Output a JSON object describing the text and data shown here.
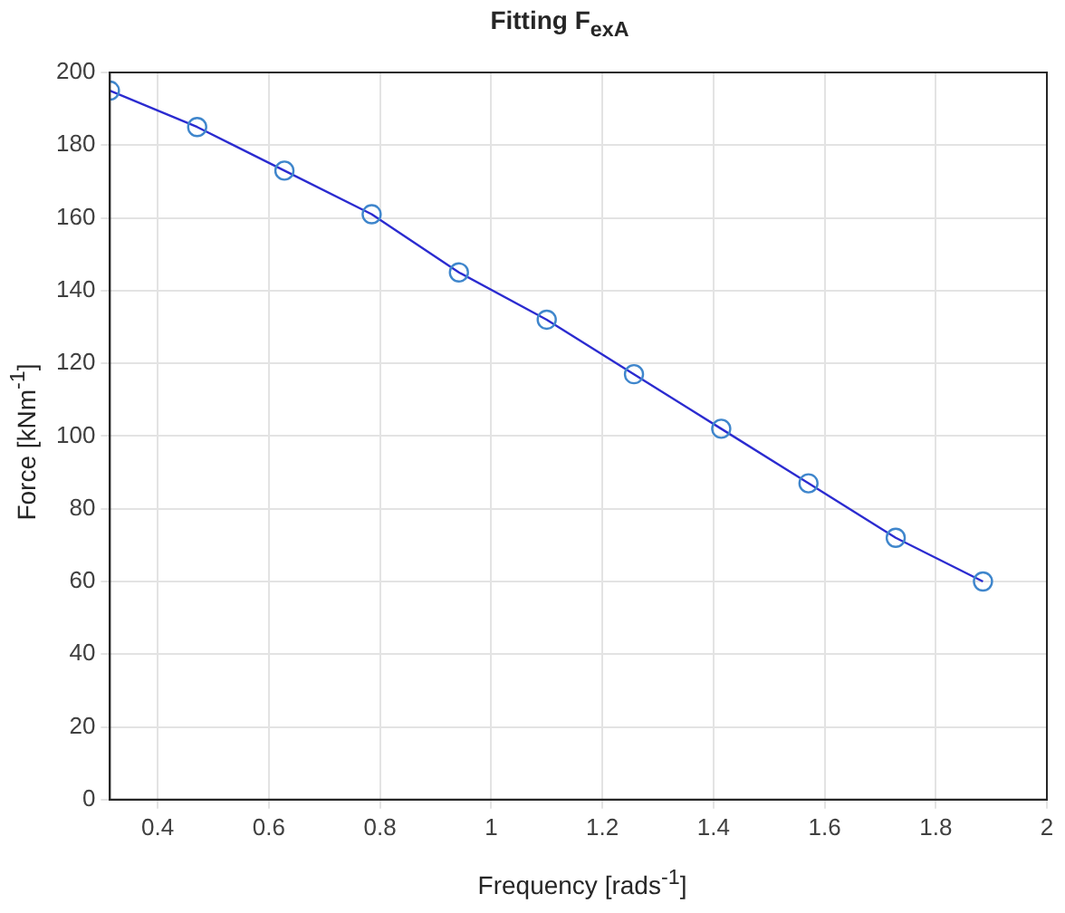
{
  "chart_data": {
    "type": "scatter",
    "title": "Fitting F$_{exA}$",
    "xlabel": "Frequency [rads$^{-1}$]",
    "ylabel": "Force [kNm$^{-1}$]",
    "x": [
      0.314,
      0.471,
      0.628,
      0.785,
      0.942,
      1.1,
      1.257,
      1.414,
      1.571,
      1.728,
      1.885
    ],
    "series": [
      {
        "marker": "circle",
        "color": "#3f86cc",
        "values": [
          195,
          185,
          173,
          161,
          145,
          132,
          117,
          102,
          87,
          72,
          60
        ]
      },
      {
        "type": "line",
        "marker": "none",
        "line_style": "solid",
        "color": "#2b2bd0",
        "values": [
          195,
          185,
          173,
          161,
          145,
          132,
          117,
          102,
          87,
          72,
          60
        ]
      }
    ],
    "xlim": [
      0.314,
      2
    ],
    "xticks": [
      {
        "value": 0.4,
        "label": "0.4"
      },
      {
        "value": 0.6,
        "label": "0.6"
      },
      {
        "value": 0.8,
        "label": "0.8"
      },
      1,
      {
        "value": 1.2,
        "label": "1.2"
      },
      {
        "value": 1.4,
        "label": "1.4"
      },
      {
        "value": 1.6,
        "label": "1.6"
      },
      {
        "value": 1.8,
        "label": "1.8"
      },
      2
    ],
    "ylim": [
      0,
      200
    ],
    "yticks": [
      0,
      20,
      40,
      60,
      80,
      100,
      120,
      140,
      160,
      180,
      200
    ],
    "grid": true,
    "legend": false
  }
}
